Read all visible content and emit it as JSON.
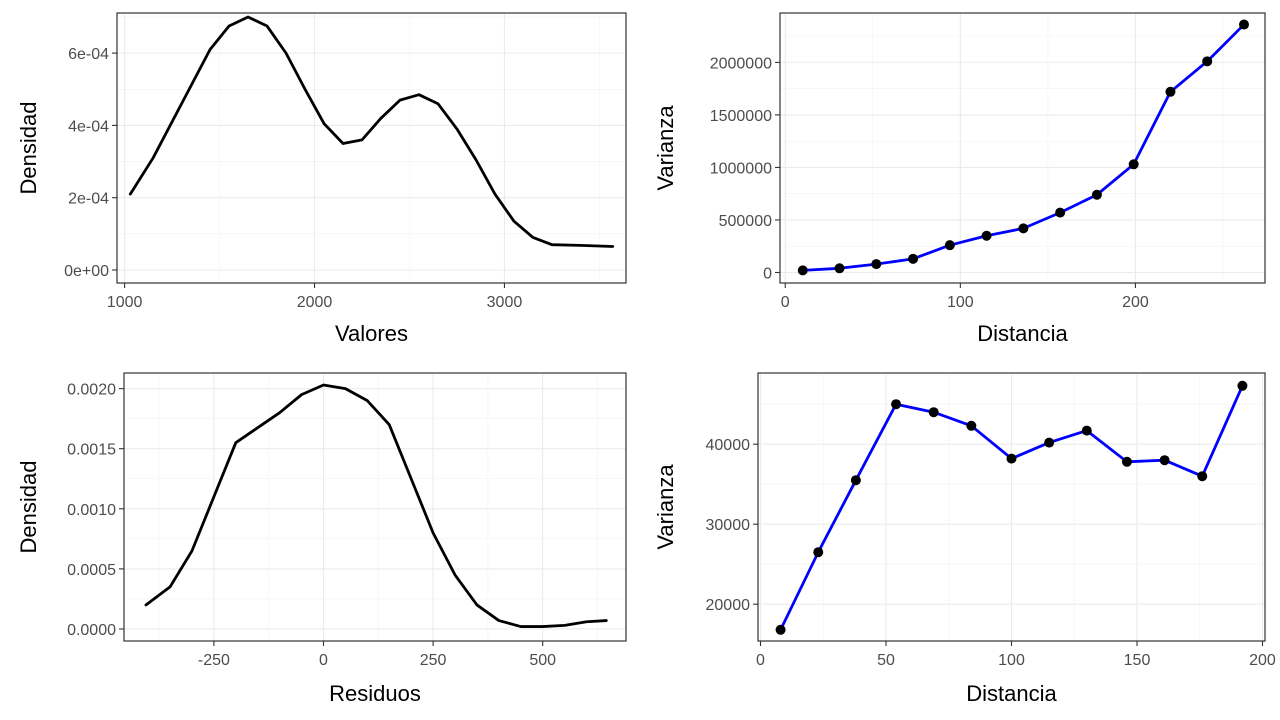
{
  "chart_data": [
    {
      "type": "line",
      "panel": "top-left",
      "xlabel": "Valores",
      "ylabel": "Densidad",
      "xlim": [
        960,
        3640
      ],
      "ylim": [
        -3.6e-05,
        0.000711
      ],
      "x_ticks": [
        1000,
        2000,
        3000
      ],
      "x_tick_labels": [
        "1000",
        "2000",
        "3000"
      ],
      "y_ticks": [
        0,
        0.0002,
        0.0004,
        0.0006
      ],
      "y_tick_labels": [
        "0e+00",
        "2e-04",
        "4e-04",
        "6e-04"
      ],
      "grid": true,
      "line_color": "#000000",
      "show_points": false,
      "series": [
        {
          "x": [
            1030,
            1150,
            1300,
            1450,
            1550,
            1650,
            1750,
            1850,
            1950,
            2050,
            2150,
            2250,
            2350,
            2450,
            2550,
            2650,
            2750,
            2850,
            2950,
            3050,
            3150,
            3250,
            3400,
            3570
          ],
          "y": [
            0.00021,
            0.00031,
            0.00046,
            0.00061,
            0.000675,
            0.0007,
            0.000675,
            0.0006,
            0.0005,
            0.000405,
            0.00035,
            0.00036,
            0.00042,
            0.00047,
            0.000485,
            0.00046,
            0.00039,
            0.000305,
            0.00021,
            0.000135,
            9e-05,
            7e-05,
            6.8e-05,
            6.5e-05
          ]
        }
      ]
    },
    {
      "type": "line",
      "panel": "top-right",
      "xlabel": "Distancia",
      "ylabel": "Varianza",
      "xlim": [
        -3,
        274
      ],
      "ylim": [
        -100000,
        2470000
      ],
      "x_ticks": [
        0,
        100,
        200
      ],
      "x_tick_labels": [
        "0",
        "100",
        "200"
      ],
      "y_ticks": [
        0,
        500000,
        1000000,
        1500000,
        2000000
      ],
      "y_tick_labels": [
        "0",
        "500000",
        "1000000",
        "1500000",
        "2000000"
      ],
      "grid": true,
      "line_color": "#0000ff",
      "point_color": "#000000",
      "show_points": true,
      "series": [
        {
          "x": [
            10,
            31,
            52,
            73,
            94,
            115,
            136,
            157,
            178,
            199,
            220,
            241,
            262
          ],
          "y": [
            20000,
            40000,
            80000,
            130000,
            260000,
            350000,
            420000,
            570000,
            740000,
            1030000,
            1720000,
            2010000,
            2360000
          ]
        }
      ]
    },
    {
      "type": "line",
      "panel": "bottom-left",
      "xlabel": "Residuos",
      "ylabel": "Densidad",
      "xlim": [
        -455,
        690
      ],
      "ylim": [
        -0.0001,
        0.00213
      ],
      "x_ticks": [
        -250,
        0,
        250,
        500
      ],
      "x_tick_labels": [
        "-250",
        "0",
        "250",
        "500"
      ],
      "y_ticks": [
        0,
        0.0005,
        0.001,
        0.0015,
        0.002
      ],
      "y_tick_labels": [
        "0.0000",
        "0.0005",
        "0.0010",
        "0.0015",
        "0.0020"
      ],
      "grid": true,
      "line_color": "#000000",
      "show_points": false,
      "series": [
        {
          "x": [
            -405,
            -350,
            -300,
            -250,
            -200,
            -160,
            -100,
            -50,
            0,
            50,
            100,
            150,
            200,
            250,
            300,
            350,
            400,
            450,
            500,
            550,
            600,
            645
          ],
          "y": [
            0.0002,
            0.00035,
            0.00065,
            0.0011,
            0.00155,
            0.00165,
            0.0018,
            0.00195,
            0.00203,
            0.002,
            0.0019,
            0.0017,
            0.00125,
            0.0008,
            0.00045,
            0.0002,
            7e-05,
            2e-05,
            2e-05,
            3e-05,
            6e-05,
            7e-05
          ]
        }
      ]
    },
    {
      "type": "line",
      "panel": "bottom-right",
      "xlabel": "Distancia",
      "ylabel": "Varianza",
      "xlim": [
        -1,
        201
      ],
      "ylim": [
        15400,
        48900
      ],
      "x_ticks": [
        0,
        50,
        100,
        150,
        200
      ],
      "x_tick_labels": [
        "0",
        "50",
        "100",
        "150",
        "200"
      ],
      "y_ticks": [
        20000,
        30000,
        40000
      ],
      "y_tick_labels": [
        "20000",
        "30000",
        "40000"
      ],
      "grid": true,
      "line_color": "#0000ff",
      "point_color": "#000000",
      "show_points": true,
      "series": [
        {
          "x": [
            8,
            23,
            38,
            54,
            69,
            84,
            100,
            115,
            130,
            146,
            161,
            176,
            192
          ],
          "y": [
            16800,
            26500,
            35500,
            45000,
            44000,
            42300,
            38200,
            40200,
            41700,
            37800,
            38000,
            36000,
            47300
          ]
        }
      ]
    }
  ]
}
